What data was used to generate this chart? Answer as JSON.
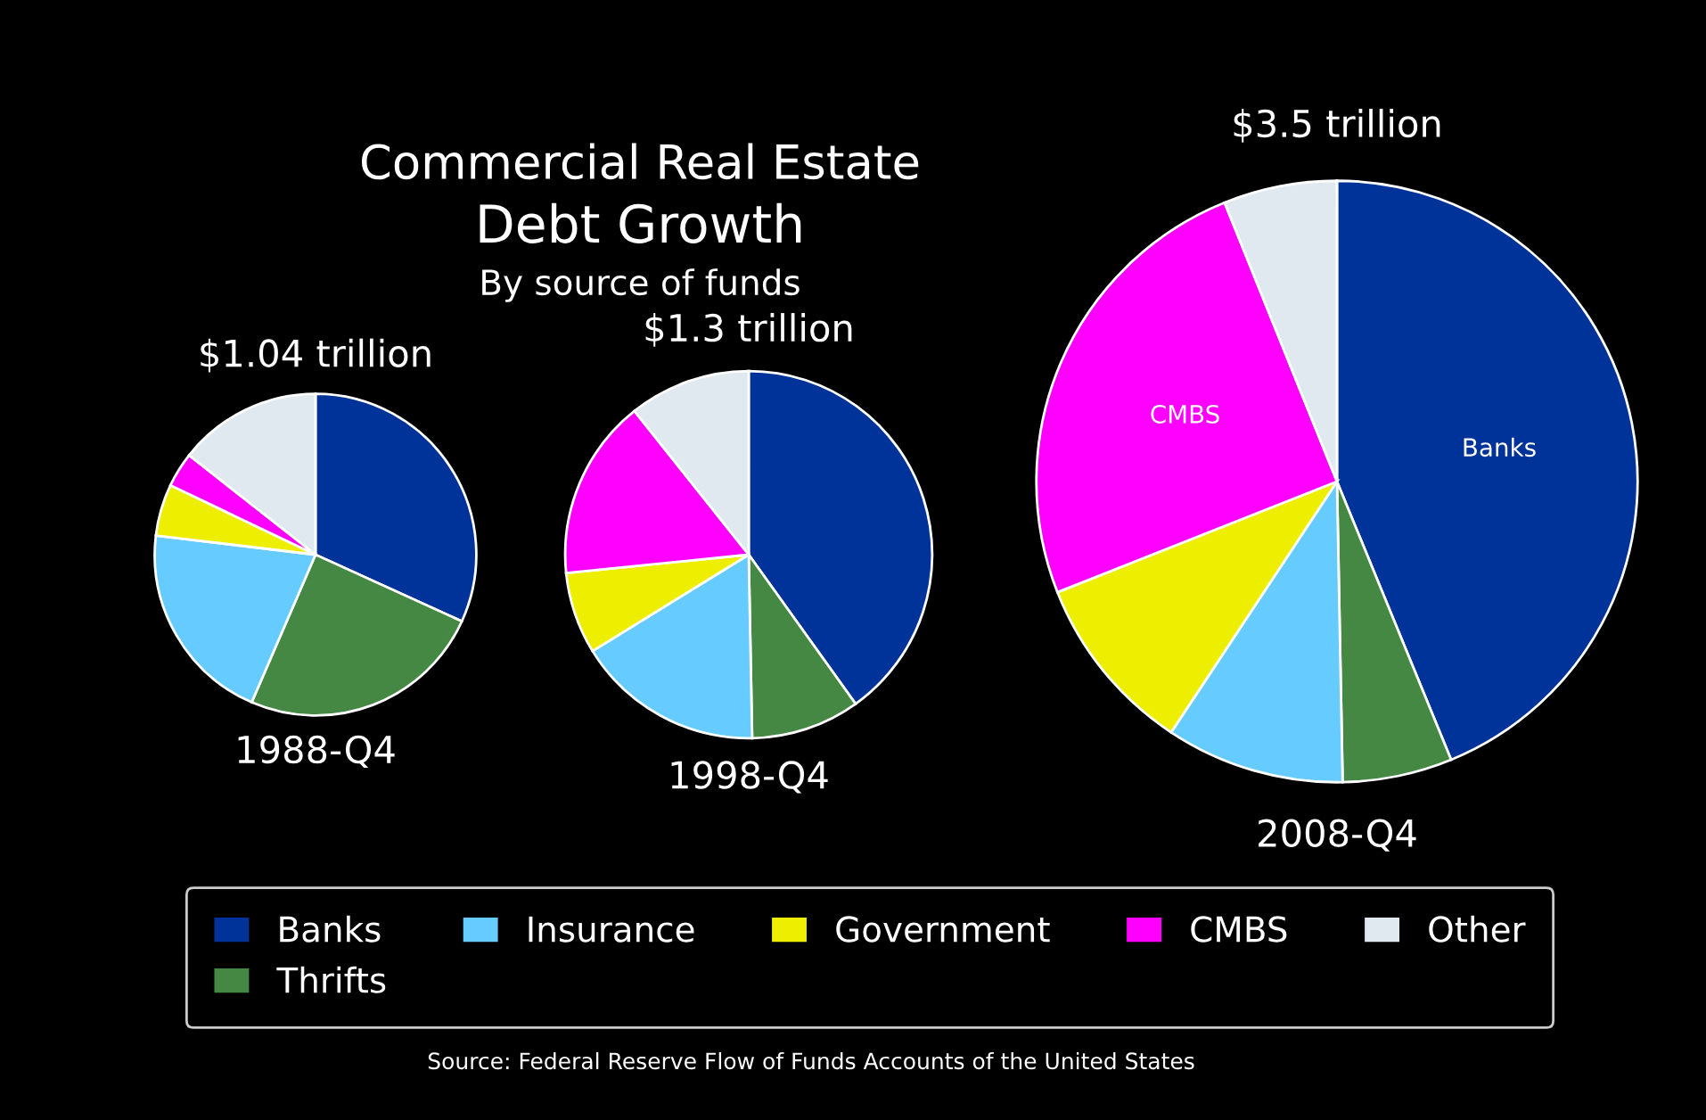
{
  "chart_data": [
    {
      "type": "pie",
      "title": "$1.04 trillion",
      "xlabel": "1988-Q4",
      "legend": "bottom",
      "categories": [
        "Banks",
        "Thrifts",
        "Insurance",
        "Government",
        "CMBS",
        "Other"
      ],
      "values": [
        31.8,
        24.7,
        20.4,
        5.2,
        3.5,
        14.4
      ],
      "colors": [
        "#003399",
        "#448844",
        "#66ccff",
        "#eeee00",
        "#ff00ff",
        "#e0e8f0"
      ],
      "annotations": [
        "Commercial Real Estate",
        "Debt Growth",
        "By source of funds",
        "Source: Federal Reserve Flow of Funds Accounts of the United States"
      ]
    },
    {
      "type": "pie",
      "title": "$1.3 trillion",
      "xlabel": "1998-Q4",
      "categories": [
        null,
        null,
        null,
        null,
        null,
        null
      ],
      "values": [
        40.1,
        9.6,
        16.5,
        7.2,
        15.9,
        10.7
      ],
      "colors": [
        "#003399",
        "#448844",
        "#66ccff",
        "#eeee00",
        "#ff00ff",
        "#e0e8f0"
      ]
    },
    {
      "type": "pie",
      "title": "$3.5 trillion",
      "xlabel": "2008-Q4",
      "categories": [
        "Banks",
        null,
        null,
        null,
        "CMBS",
        null
      ],
      "values": [
        43.8,
        5.9,
        9.6,
        9.7,
        24.9,
        6.1
      ],
      "colors": [
        "#003399",
        "#448844",
        "#66ccff",
        "#eeee00",
        "#ff00ff",
        "#e0e8f0"
      ]
    }
  ]
}
